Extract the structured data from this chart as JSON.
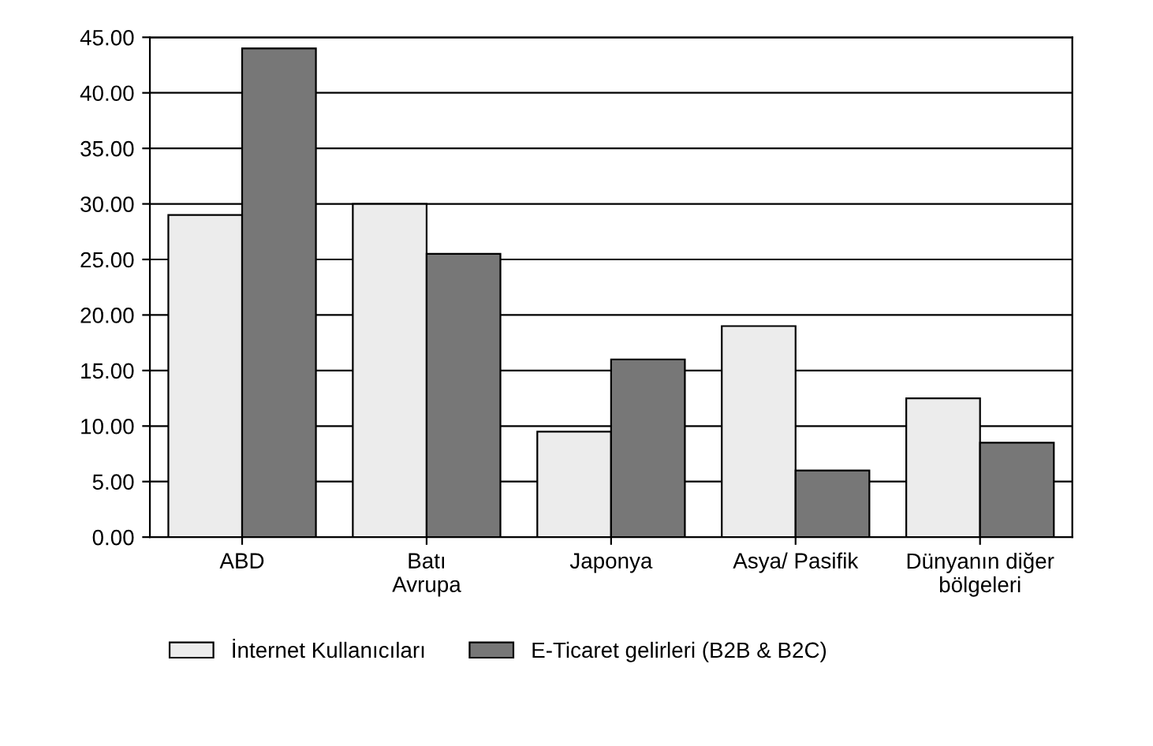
{
  "chart_data": {
    "type": "bar",
    "categories": [
      "ABD",
      "Batı\nAvrupa",
      "Japonya",
      "Asya/ Pasifik",
      "Dünyanın diğer\nbölgeleri"
    ],
    "series": [
      {
        "name": "İnternet Kullanıcıları",
        "color": "#ececec",
        "values": [
          29,
          30,
          9.5,
          19,
          12.5
        ]
      },
      {
        "name": "E-Ticaret gelirleri (B2B & B2C)",
        "color": "#777777",
        "values": [
          44,
          25.5,
          16,
          6,
          8.5
        ]
      }
    ],
    "ylim": [
      0,
      45
    ],
    "yticks": [
      {
        "value": 0,
        "label": "0.00"
      },
      {
        "value": 5,
        "label": "5.00"
      },
      {
        "value": 10,
        "label": "10.00"
      },
      {
        "value": 15,
        "label": "15.00"
      },
      {
        "value": 20,
        "label": "20.00"
      },
      {
        "value": 25,
        "label": "25.00"
      },
      {
        "value": 30,
        "label": "30.00"
      },
      {
        "value": 35,
        "label": "35.00"
      },
      {
        "value": 40,
        "label": "40.00"
      },
      {
        "value": 45,
        "label": "45.00"
      }
    ],
    "grid": "y",
    "legend": "bottom"
  }
}
